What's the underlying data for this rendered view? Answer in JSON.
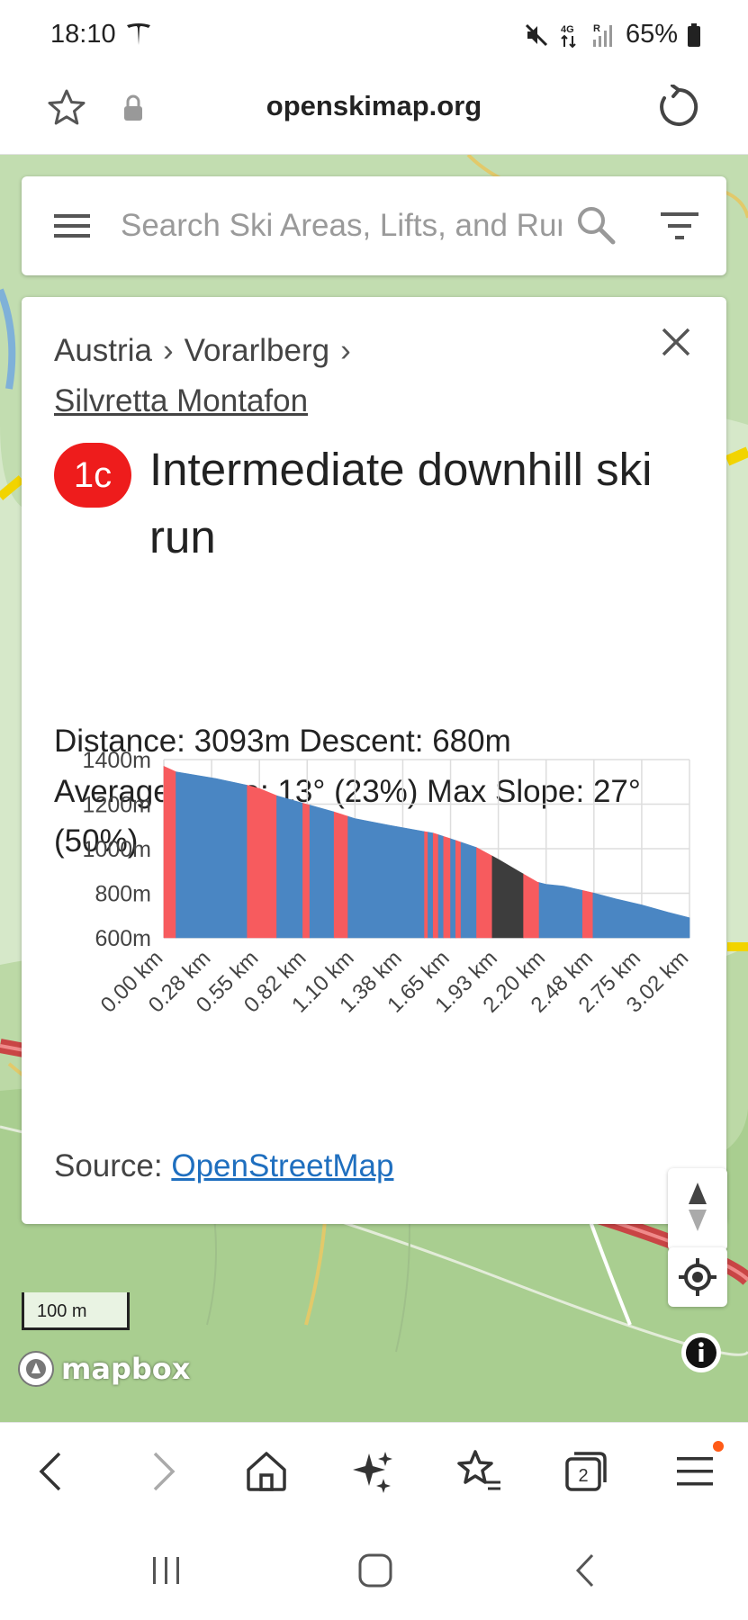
{
  "status": {
    "time": "18:10",
    "battery": "65%",
    "network": "4G",
    "roaming": "R"
  },
  "browser": {
    "url": "openskimap.org"
  },
  "search": {
    "placeholder": "Search Ski Areas, Lifts, and Runs"
  },
  "card": {
    "breadcrumb": [
      "Austria",
      "Vorarlberg"
    ],
    "breadcrumb_separator": "›",
    "resort": "Silvretta Montafon",
    "run_badge": "1c",
    "run_badge_color": "#ee1c1c",
    "run_title": "Intermediate downhill ski run",
    "stats_row1": "Distance: 3093m  Descent: 680m",
    "stats_row2": "Average Slope: 13° (23%)  Max Slope: 27° (50%)",
    "source_label": "Source: ",
    "source_link": "OpenStreetMap"
  },
  "chart_data": {
    "type": "area",
    "title": "",
    "xlabel": "",
    "ylabel": "",
    "ylim": [
      600,
      1400
    ],
    "y_ticks": [
      "1400m",
      "1200m",
      "1000m",
      "800m",
      "600m"
    ],
    "y_tick_values": [
      1400,
      1200,
      1000,
      800,
      600
    ],
    "x_ticks": [
      "0.00 km",
      "0.28 km",
      "0.55 km",
      "0.82 km",
      "1.10 km",
      "1.38 km",
      "1.65 km",
      "1.93 km",
      "2.20 km",
      "2.48 km",
      "2.75 km",
      "3.02 km"
    ],
    "x_tick_values": [
      0.0,
      0.275,
      0.55,
      0.825,
      1.1,
      1.375,
      1.65,
      1.925,
      2.2,
      2.475,
      2.75,
      3.025
    ],
    "xlim": [
      0,
      3.025
    ],
    "grid": true,
    "legend": "none",
    "slope_colors": {
      "moderate": "#4a86c3",
      "steep": "#f75b5e",
      "very_steep": "#3d3d3d"
    },
    "profile": [
      {
        "km": 0.0,
        "elev": 1370
      },
      {
        "km": 0.07,
        "elev": 1345
      },
      {
        "km": 0.3,
        "elev": 1315
      },
      {
        "km": 0.48,
        "elev": 1285
      },
      {
        "km": 0.55,
        "elev": 1270
      },
      {
        "km": 0.65,
        "elev": 1238
      },
      {
        "km": 0.82,
        "elev": 1200
      },
      {
        "km": 0.98,
        "elev": 1165
      },
      {
        "km": 1.1,
        "elev": 1135
      },
      {
        "km": 1.3,
        "elev": 1105
      },
      {
        "km": 1.55,
        "elev": 1070
      },
      {
        "km": 1.65,
        "elev": 1045
      },
      {
        "km": 1.8,
        "elev": 1005
      },
      {
        "km": 1.93,
        "elev": 950
      },
      {
        "km": 2.05,
        "elev": 895
      },
      {
        "km": 2.15,
        "elev": 850
      },
      {
        "km": 2.2,
        "elev": 840
      },
      {
        "km": 2.3,
        "elev": 832
      },
      {
        "km": 2.48,
        "elev": 800
      },
      {
        "km": 2.6,
        "elev": 775
      },
      {
        "km": 2.75,
        "elev": 748
      },
      {
        "km": 2.9,
        "elev": 715
      },
      {
        "km": 3.025,
        "elev": 690
      }
    ],
    "segments": [
      {
        "from": 0.0,
        "to": 0.07,
        "slope": "steep"
      },
      {
        "from": 0.07,
        "to": 0.48,
        "slope": "moderate"
      },
      {
        "from": 0.48,
        "to": 0.65,
        "slope": "steep"
      },
      {
        "from": 0.65,
        "to": 0.8,
        "slope": "moderate"
      },
      {
        "from": 0.8,
        "to": 0.84,
        "slope": "steep"
      },
      {
        "from": 0.84,
        "to": 0.98,
        "slope": "moderate"
      },
      {
        "from": 0.98,
        "to": 1.06,
        "slope": "steep"
      },
      {
        "from": 1.06,
        "to": 1.5,
        "slope": "moderate"
      },
      {
        "from": 1.5,
        "to": 1.52,
        "slope": "steep"
      },
      {
        "from": 1.52,
        "to": 1.55,
        "slope": "moderate"
      },
      {
        "from": 1.55,
        "to": 1.58,
        "slope": "steep"
      },
      {
        "from": 1.58,
        "to": 1.61,
        "slope": "moderate"
      },
      {
        "from": 1.61,
        "to": 1.65,
        "slope": "steep"
      },
      {
        "from": 1.65,
        "to": 1.68,
        "slope": "moderate"
      },
      {
        "from": 1.68,
        "to": 1.71,
        "slope": "steep"
      },
      {
        "from": 1.71,
        "to": 1.8,
        "slope": "moderate"
      },
      {
        "from": 1.8,
        "to": 1.89,
        "slope": "steep"
      },
      {
        "from": 1.89,
        "to": 2.07,
        "slope": "very_steep"
      },
      {
        "from": 2.07,
        "to": 2.16,
        "slope": "steep"
      },
      {
        "from": 2.16,
        "to": 2.41,
        "slope": "moderate"
      },
      {
        "from": 2.41,
        "to": 2.47,
        "slope": "steep"
      },
      {
        "from": 2.47,
        "to": 3.025,
        "slope": "moderate"
      }
    ]
  },
  "map": {
    "scale_label": "100 m",
    "attribution": "mapbox"
  }
}
